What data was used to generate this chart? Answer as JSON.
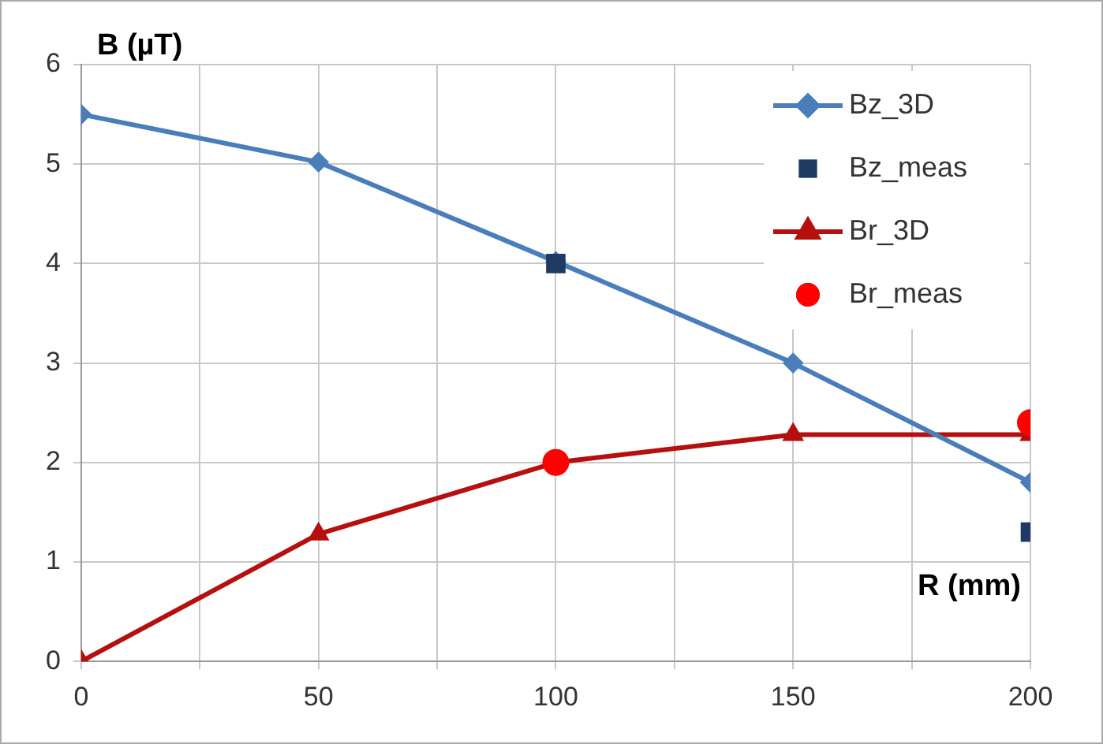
{
  "chart_data": {
    "type": "line",
    "xlabel": "R (mm)",
    "ylabel": "B (µT)",
    "xlim": [
      0,
      200
    ],
    "xticks": [
      0,
      {
        "value": 25,
        "label": null
      },
      50,
      {
        "value": 75,
        "label": null
      },
      100,
      {
        "value": 125,
        "label": null
      },
      150,
      {
        "value": 175,
        "label": null
      },
      200
    ],
    "ylim": [
      0,
      6
    ],
    "yticks": [
      0,
      1,
      2,
      3,
      4,
      5,
      6
    ],
    "grid": true,
    "legend": "top right",
    "line_style": "solid",
    "series": [
      {
        "name": "Bz_3D",
        "type": "line",
        "color": "#4a7ebb",
        "marker": "diamond",
        "x": [
          0,
          50,
          100,
          150,
          200
        ],
        "values": [
          5.5,
          5.02,
          4.02,
          3.0,
          1.8
        ]
      },
      {
        "name": "Bz_meas",
        "type": "scatter",
        "color": "#1f3b63",
        "marker": "square",
        "x": [
          100,
          200
        ],
        "values": [
          4.0,
          1.3
        ]
      },
      {
        "name": "Br_3D",
        "type": "line",
        "color": "#b50f0f",
        "marker": "triangle",
        "x": [
          0,
          50,
          100,
          150,
          200
        ],
        "values": [
          0,
          1.28,
          2.0,
          2.28,
          2.28
        ]
      },
      {
        "name": "Br_meas",
        "type": "scatter",
        "color": "#ff0000",
        "marker": "circle",
        "x": [
          100,
          200
        ],
        "values": [
          2.0,
          2.4
        ]
      }
    ]
  }
}
